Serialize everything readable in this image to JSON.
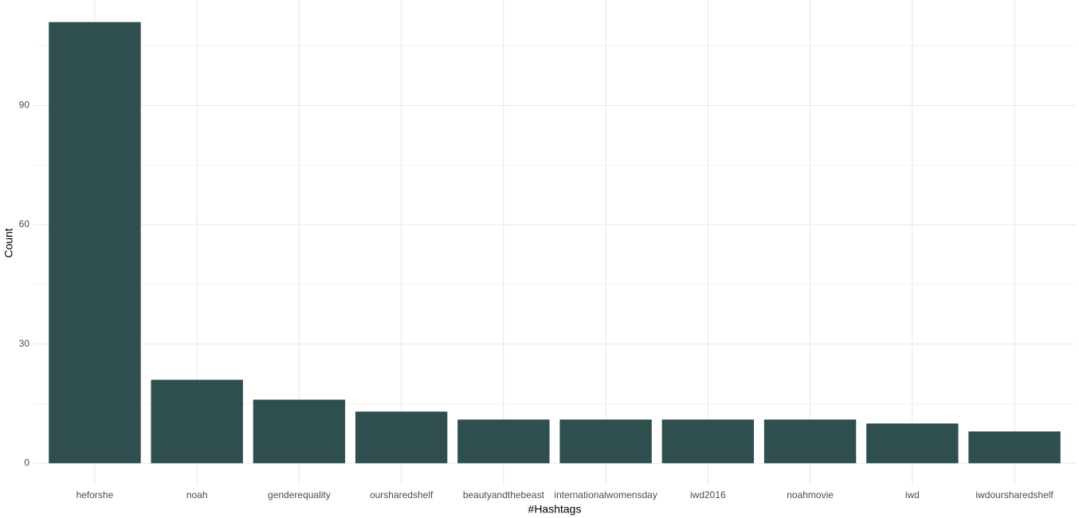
{
  "chart_data": {
    "type": "bar",
    "x_label": "#Hashtags",
    "y_label": "Count",
    "categories": [
      "heforshe",
      "noah",
      "genderequality",
      "oursharedshelf",
      "beautyandthebeast",
      "internationalwomensday",
      "iwd2016",
      "noahmovie",
      "iwd",
      "iwdoursharedshelf"
    ],
    "values": [
      111,
      21,
      16,
      13,
      11,
      11,
      11,
      11,
      10,
      8
    ],
    "color": "#2f4f4f",
    "ylim": [
      -5.55,
      116.55
    ],
    "yticks": [
      0,
      30,
      60,
      90
    ],
    "y_minor_grid": [
      15,
      45,
      75,
      105
    ],
    "grid": true
  }
}
